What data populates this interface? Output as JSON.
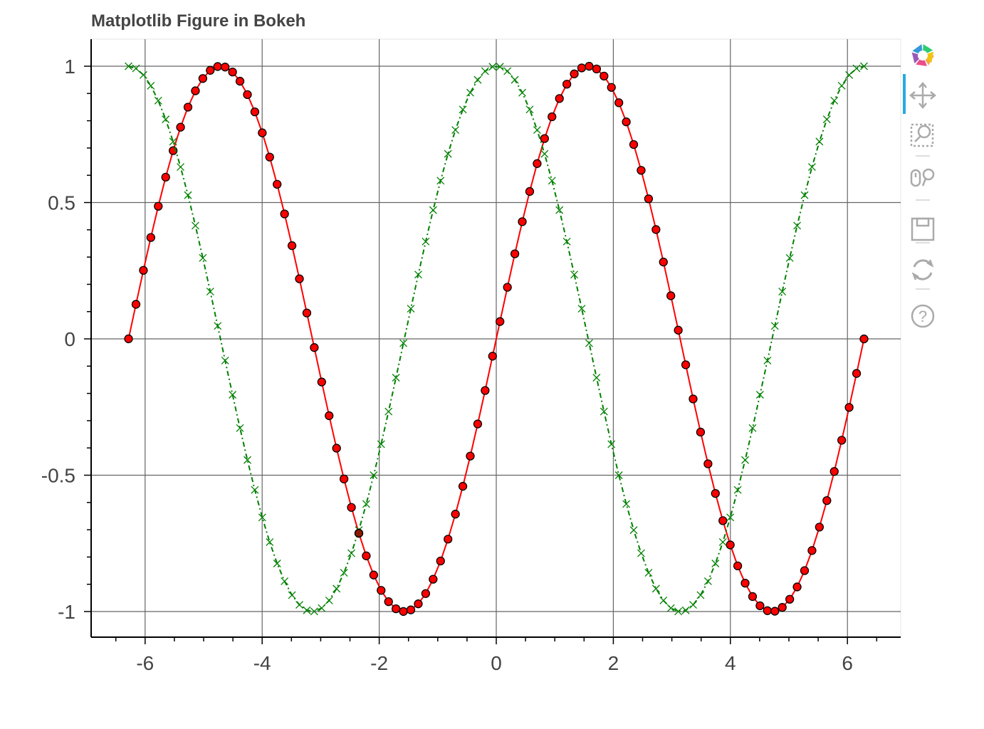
{
  "title": "Matplotlib Figure in Bokeh",
  "toolbar": {
    "tools": [
      {
        "name": "bokeh-logo-icon",
        "label": "Bokeh"
      },
      {
        "name": "pan-icon",
        "label": "Pan",
        "active": true
      },
      {
        "name": "box-zoom-icon",
        "label": "Box Zoom"
      },
      {
        "name": "wheel-zoom-icon",
        "label": "Wheel Zoom"
      },
      {
        "name": "save-icon",
        "label": "Save"
      },
      {
        "name": "reset-icon",
        "label": "Reset"
      },
      {
        "name": "help-icon",
        "label": "Help"
      }
    ]
  },
  "chart_data": {
    "type": "line",
    "title": "Matplotlib Figure in Bokeh",
    "xlabel": "",
    "ylabel": "",
    "xlim": [
      -6.9,
      6.9
    ],
    "ylim": [
      -1.1,
      1.1
    ],
    "grid": true,
    "x_ticks": [
      -6,
      -4,
      -2,
      0,
      2,
      4,
      6
    ],
    "x_tick_labels": [
      "-6",
      "-4",
      "-2",
      "0",
      "2",
      "4",
      "6"
    ],
    "y_ticks": [
      1,
      0.5,
      0,
      -0.5,
      -1
    ],
    "y_tick_labels": [
      "1",
      "0.5",
      "0",
      "-0.5",
      "-1"
    ],
    "series": [
      {
        "function": "sin(x)",
        "x_range": [
          -6.283,
          6.283
        ],
        "n_points": 100,
        "color": "#ff0000",
        "line_style": "solid",
        "marker": "circle",
        "marker_edge": "#000000"
      },
      {
        "function": "cos(x)",
        "x_range": [
          -6.283,
          6.283
        ],
        "n_points": 100,
        "color": "#008000",
        "line_style": "dashdot",
        "marker": "x"
      }
    ],
    "highlighted_point": {
      "x": -2.348,
      "y": -0.713,
      "color": "#8b1a00"
    }
  }
}
